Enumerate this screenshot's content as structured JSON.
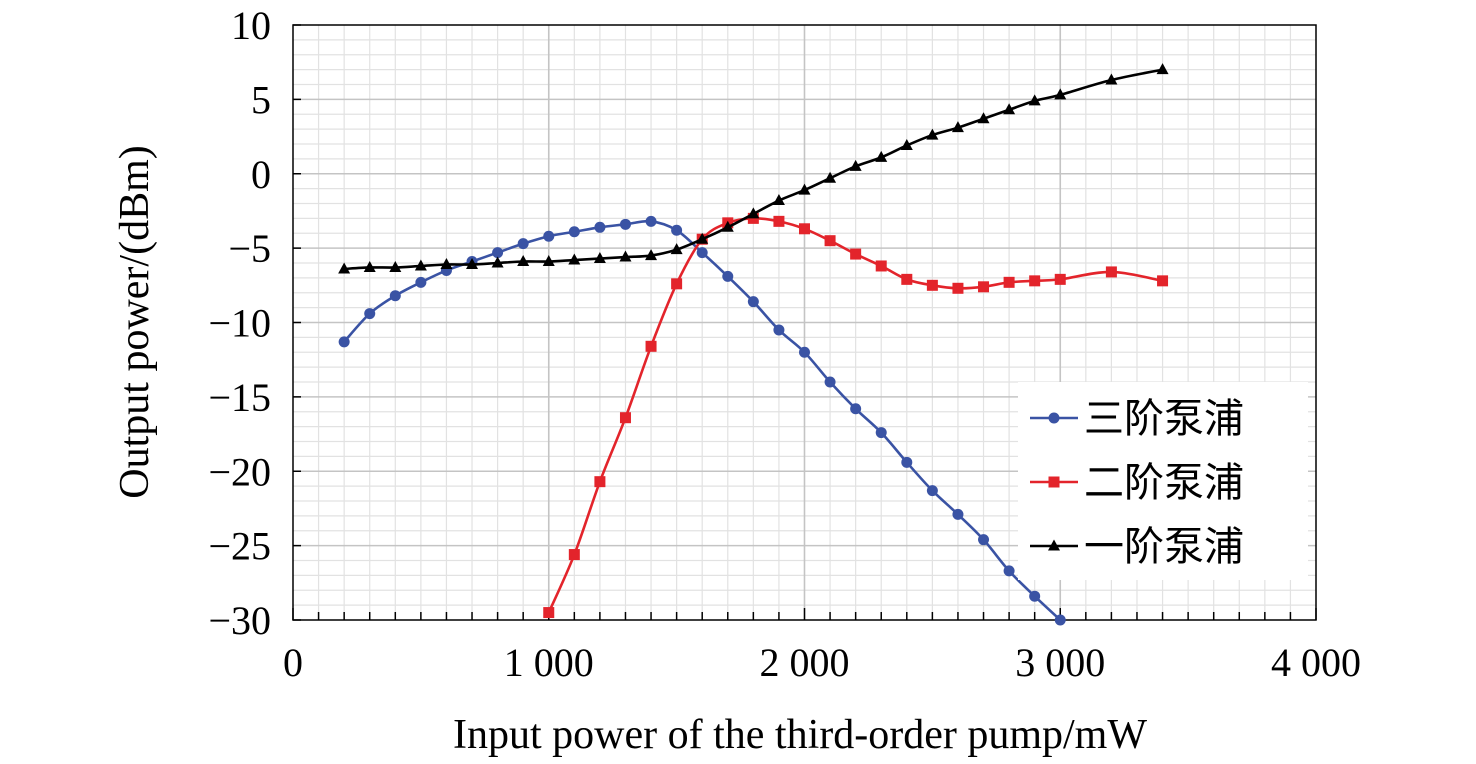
{
  "chart_data": {
    "type": "line",
    "title": "",
    "xlabel": "Input power of the third-order pump/mW",
    "ylabel": "Output power/(dBm)",
    "xlim": [
      0,
      4000
    ],
    "ylim": [
      -30,
      10
    ],
    "x_ticks": [
      0,
      1000,
      2000,
      3000,
      4000
    ],
    "x_tick_labels": [
      "0",
      "1 000",
      "2 000",
      "3 000",
      "4 000"
    ],
    "y_ticks": [
      10,
      5,
      0,
      -5,
      -10,
      -15,
      -20,
      -25,
      -30
    ],
    "y_tick_labels": [
      "10",
      "5",
      "0",
      "−5",
      "−10",
      "−15",
      "−20",
      "−25",
      "−30"
    ],
    "grid": true,
    "legend_position": "right",
    "series": [
      {
        "name": "三阶泵浦",
        "color": "#3a53a4",
        "marker": "circle",
        "x": [
          200,
          300,
          400,
          500,
          600,
          700,
          800,
          900,
          1000,
          1100,
          1200,
          1300,
          1400,
          1500,
          1600,
          1700,
          1800,
          1900,
          2000,
          2100,
          2200,
          2300,
          2400,
          2500,
          2600,
          2700,
          2800,
          2900,
          3000
        ],
        "y": [
          -11.3,
          -9.4,
          -8.2,
          -7.3,
          -6.5,
          -5.9,
          -5.3,
          -4.7,
          -4.2,
          -3.9,
          -3.6,
          -3.4,
          -3.2,
          -3.8,
          -5.3,
          -6.9,
          -8.6,
          -10.5,
          -12.0,
          -14.0,
          -15.8,
          -17.4,
          -19.4,
          -21.3,
          -22.9,
          -24.6,
          -26.7,
          -28.4,
          -30.0
        ]
      },
      {
        "name": "二阶泵浦",
        "color": "#e3242b",
        "marker": "square",
        "x": [
          1000,
          1100,
          1200,
          1300,
          1400,
          1500,
          1600,
          1700,
          1800,
          1900,
          2000,
          2100,
          2200,
          2300,
          2400,
          2500,
          2600,
          2700,
          2800,
          2900,
          3000,
          3200,
          3400
        ],
        "y": [
          -29.5,
          -25.6,
          -20.7,
          -16.4,
          -11.6,
          -7.4,
          -4.4,
          -3.3,
          -3.0,
          -3.2,
          -3.7,
          -4.5,
          -5.4,
          -6.2,
          -7.1,
          -7.5,
          -7.7,
          -7.6,
          -7.3,
          -7.2,
          -7.1,
          -6.6,
          -7.2
        ]
      },
      {
        "name": "一阶泵浦",
        "color": "#000000",
        "marker": "triangle",
        "x": [
          200,
          300,
          400,
          500,
          600,
          700,
          800,
          900,
          1000,
          1100,
          1200,
          1300,
          1400,
          1500,
          1600,
          1700,
          1800,
          1900,
          2000,
          2100,
          2200,
          2300,
          2400,
          2500,
          2600,
          2700,
          2800,
          2900,
          3000,
          3200,
          3400
        ],
        "y": [
          -6.4,
          -6.3,
          -6.3,
          -6.2,
          -6.1,
          -6.1,
          -6.0,
          -5.9,
          -5.9,
          -5.8,
          -5.7,
          -5.6,
          -5.5,
          -5.1,
          -4.4,
          -3.6,
          -2.7,
          -1.8,
          -1.1,
          -0.3,
          0.5,
          1.1,
          1.9,
          2.6,
          3.1,
          3.7,
          4.3,
          4.9,
          5.3,
          6.3,
          7.0
        ]
      }
    ]
  }
}
